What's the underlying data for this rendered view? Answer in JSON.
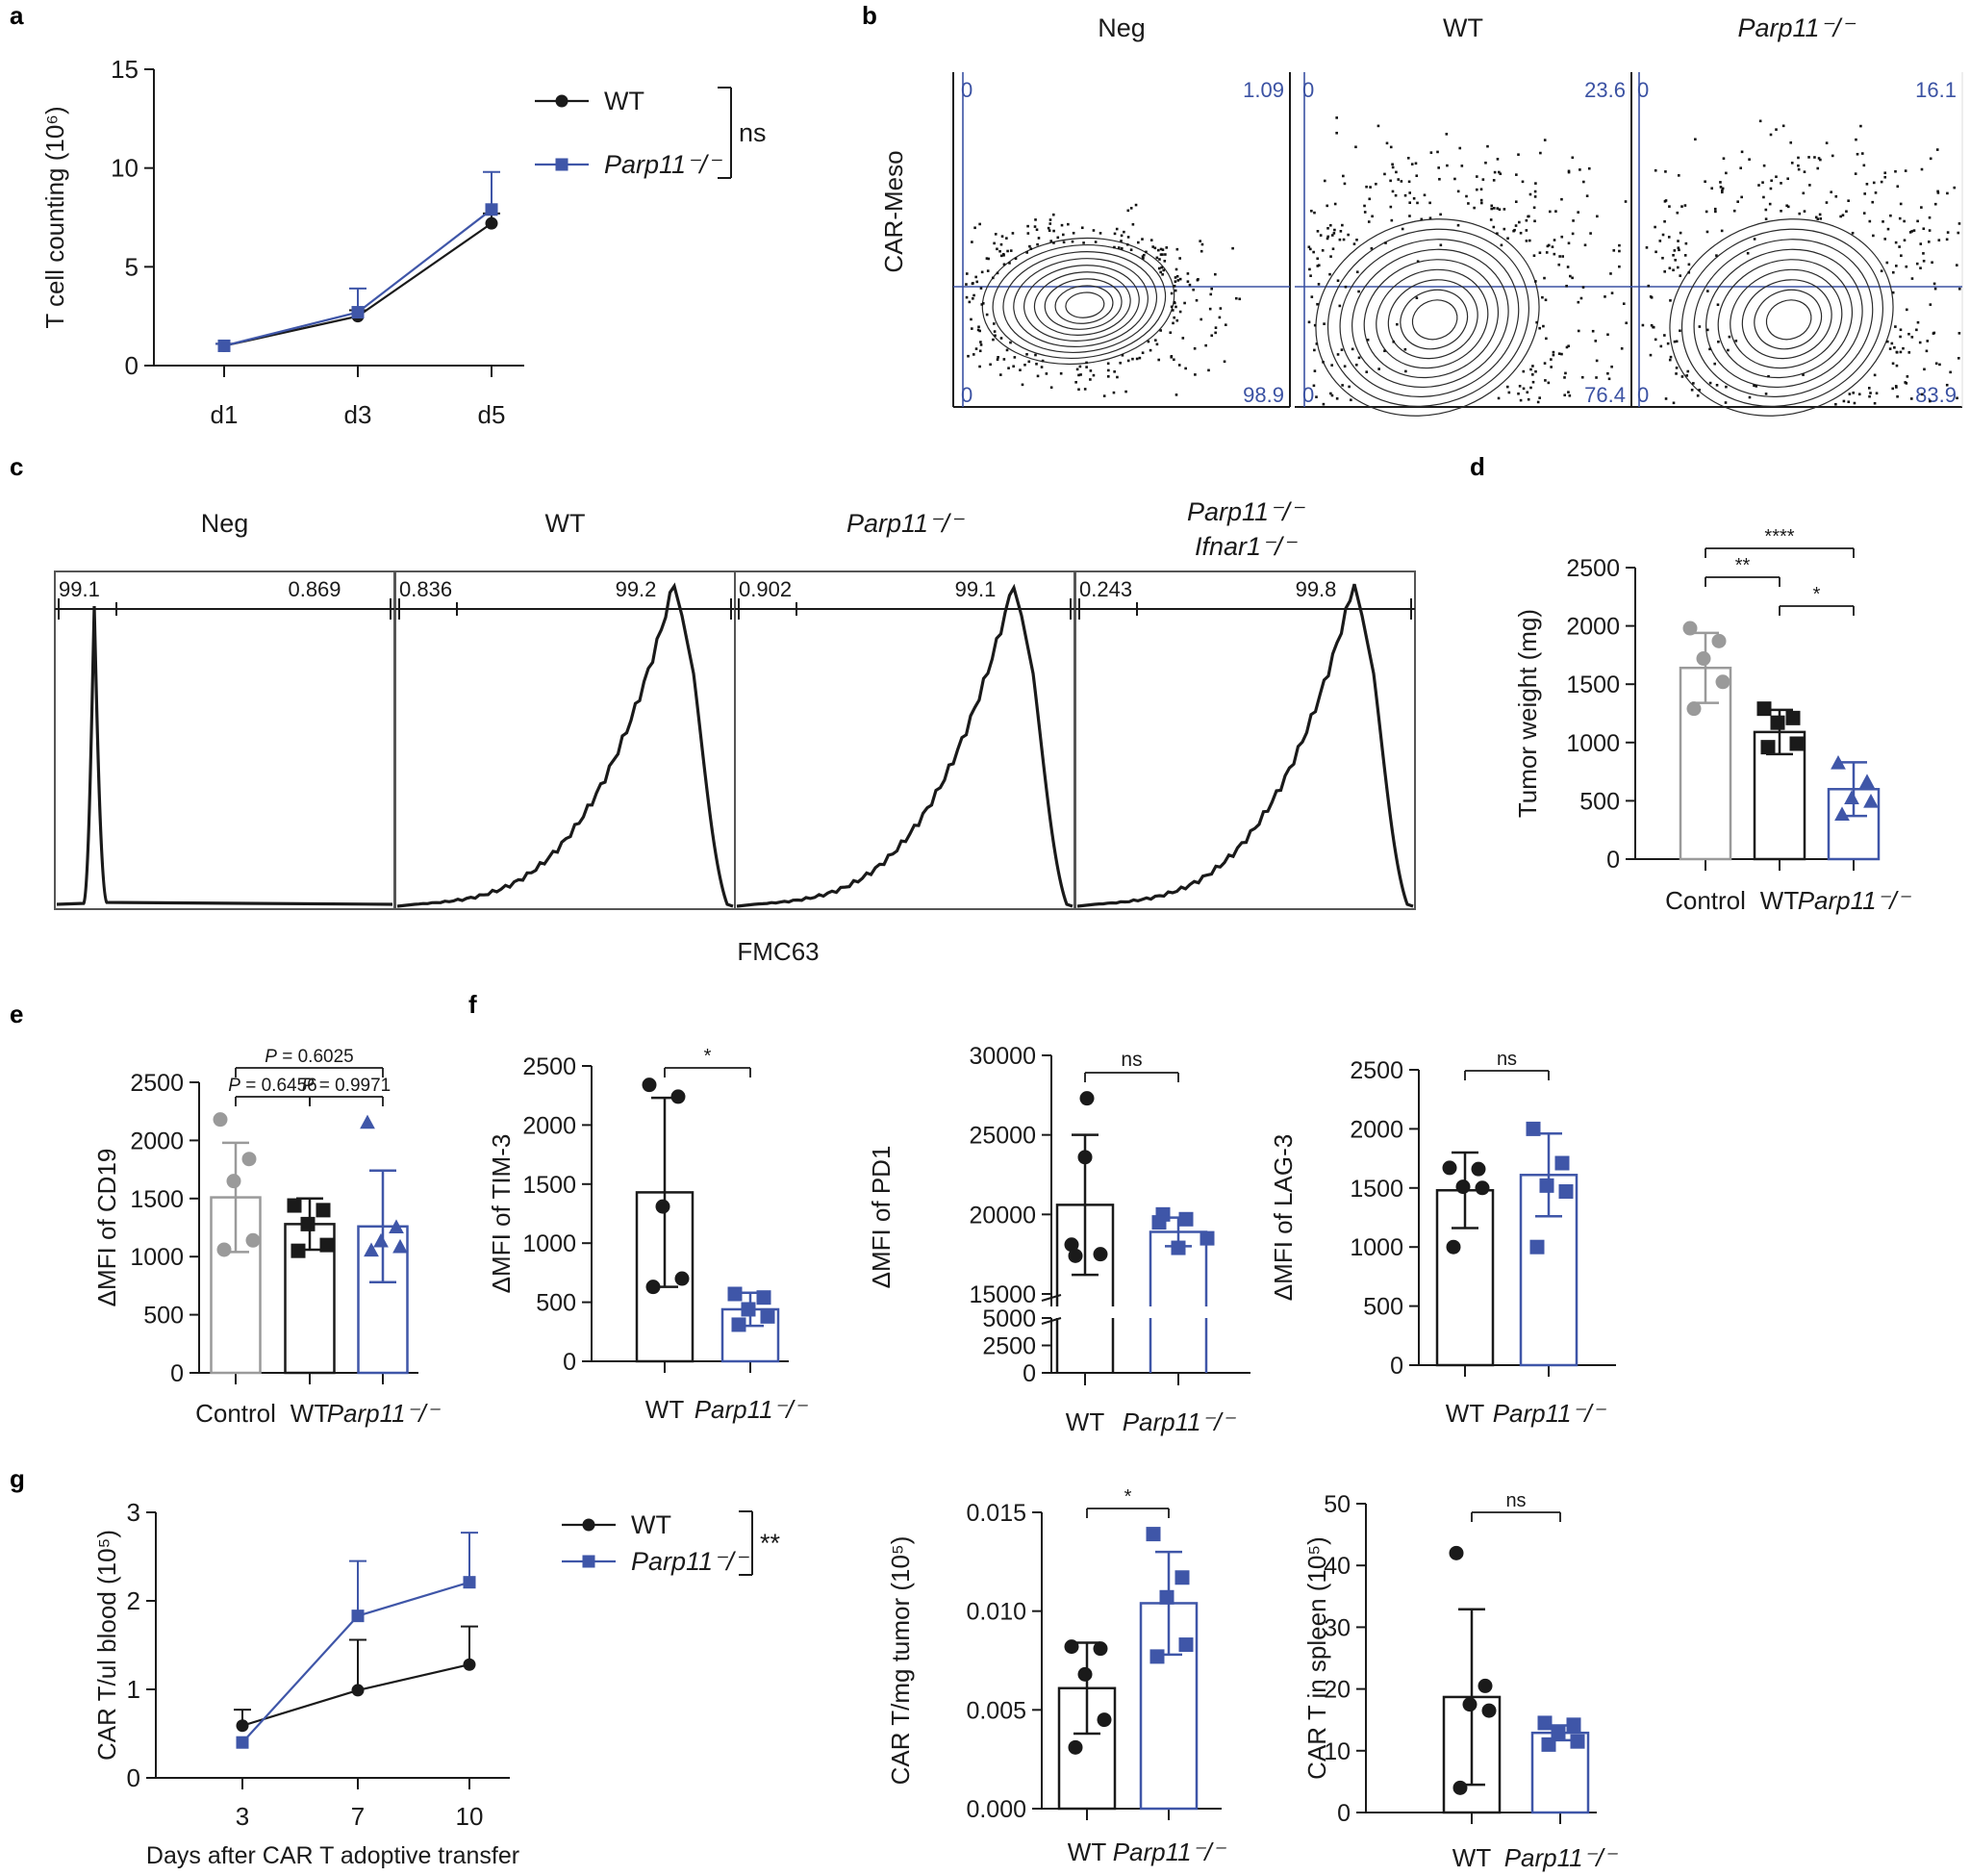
{
  "colors": {
    "black": "#1a1a1a",
    "blue": "#3f56a8",
    "gray": "#9a9a9a",
    "gate": "#3b52a3"
  },
  "panel_letters": {
    "a": "a",
    "b": "b",
    "c": "c",
    "d": "d",
    "e": "e",
    "f": "f",
    "g": "g"
  },
  "chart_data": [
    {
      "id": "a",
      "type": "line",
      "ylabel": "T cell counting (10⁶)",
      "categories": [
        "d1",
        "d3",
        "d5"
      ],
      "ylim": [
        0,
        15
      ],
      "yticks": [
        0,
        5,
        10,
        15
      ],
      "series": [
        {
          "name": "WT",
          "color": "black",
          "marker": "circle",
          "values": [
            1.0,
            2.5,
            7.2
          ],
          "err": [
            0.1,
            0.3,
            0.5
          ]
        },
        {
          "name": "Parp11⁻/⁻",
          "color": "blue",
          "marker": "square",
          "values": [
            1.0,
            2.7,
            7.9
          ],
          "err": [
            0.1,
            1.2,
            1.9
          ]
        }
      ],
      "annotation": "ns"
    },
    {
      "id": "b",
      "type": "scatter",
      "ylabel": "CAR-Meso",
      "plots": [
        {
          "title": "Neg",
          "italic": false,
          "q_ul": "0",
          "q_ur": "1.09",
          "q_ll": "0",
          "q_lr": "98.9"
        },
        {
          "title": "WT",
          "italic": false,
          "q_ul": "0",
          "q_ur": "23.6",
          "q_ll": "0",
          "q_lr": "76.4"
        },
        {
          "title": "Parp11⁻/⁻",
          "italic": true,
          "q_ul": "0",
          "q_ur": "16.1",
          "q_ll": "0",
          "q_lr": "83.9"
        }
      ]
    },
    {
      "id": "c",
      "type": "area",
      "xlabel": "FMC63",
      "plots": [
        {
          "title": "Neg",
          "title2": "",
          "italic": false,
          "left": "99.1",
          "right": "0.869"
        },
        {
          "title": "WT",
          "title2": "",
          "italic": false,
          "left": "0.836",
          "right": "99.2"
        },
        {
          "title": "Parp11⁻/⁻",
          "title2": "",
          "italic": true,
          "left": "0.902",
          "right": "99.1"
        },
        {
          "title": "Parp11⁻/⁻",
          "title2": "Ifnar1⁻/⁻",
          "italic": true,
          "left": "0.243",
          "right": "99.8"
        }
      ]
    },
    {
      "id": "d",
      "type": "bar",
      "ylabel": "Tumor weight (mg)",
      "ylim": [
        0,
        2500
      ],
      "yticks": [
        0,
        500,
        1000,
        1500,
        2000,
        2500
      ],
      "categories": [
        "Control",
        "WT",
        "Parp11⁻/⁻"
      ],
      "bars": [
        {
          "mean": 1640,
          "sd": 300,
          "color": "gray",
          "marker": "circle",
          "points": [
            1980,
            1870,
            1720,
            1520,
            1290
          ]
        },
        {
          "mean": 1090,
          "sd": 190,
          "color": "black",
          "marker": "square",
          "points": [
            1290,
            1210,
            1170,
            990,
            960
          ]
        },
        {
          "mean": 600,
          "sd": 230,
          "color": "blue",
          "marker": "triangle",
          "points": [
            820,
            660,
            520,
            490,
            380
          ]
        }
      ],
      "sig": [
        {
          "from": 0,
          "to": 2,
          "label": "****"
        },
        {
          "from": 0,
          "to": 1,
          "label": "**"
        },
        {
          "from": 1,
          "to": 2,
          "label": "*"
        }
      ]
    },
    {
      "id": "e",
      "type": "bar",
      "ylabel": "ΔMFI of CD19",
      "ylim": [
        0,
        2500
      ],
      "yticks": [
        0,
        500,
        1000,
        1500,
        2000,
        2500
      ],
      "categories": [
        "Control",
        "WT",
        "Parp11⁻/⁻"
      ],
      "bars": [
        {
          "mean": 1510,
          "sd": 470,
          "color": "gray",
          "marker": "circle",
          "points": [
            2180,
            1840,
            1650,
            1140,
            1060
          ]
        },
        {
          "mean": 1280,
          "sd": 220,
          "color": "black",
          "marker": "square",
          "points": [
            1440,
            1400,
            1280,
            1100,
            1050
          ]
        },
        {
          "mean": 1260,
          "sd": 480,
          "color": "blue",
          "marker": "triangle",
          "points": [
            2150,
            1250,
            1130,
            1080,
            1050
          ]
        }
      ],
      "sig": [
        {
          "from": 0,
          "to": 2,
          "label": "P = 0.6025"
        },
        {
          "from": 0,
          "to": 1,
          "label": "P = 0.6456"
        },
        {
          "from": 1,
          "to": 2,
          "label": "P = 0.9971"
        }
      ]
    },
    {
      "id": "f1",
      "type": "bar",
      "ylabel": "ΔMFI of TIM-3",
      "ylim": [
        0,
        2500
      ],
      "yticks": [
        0,
        500,
        1000,
        1500,
        2000,
        2500
      ],
      "categories": [
        "WT",
        "Parp11⁻/⁻"
      ],
      "bars": [
        {
          "mean": 1430,
          "sd": 800,
          "color": "black",
          "marker": "circle",
          "points": [
            2340,
            2240,
            1310,
            700,
            630
          ]
        },
        {
          "mean": 440,
          "sd": 140,
          "color": "blue",
          "marker": "square",
          "points": [
            570,
            540,
            440,
            380,
            310
          ]
        }
      ],
      "sig": [
        {
          "from": 0,
          "to": 1,
          "label": "*"
        }
      ]
    },
    {
      "id": "f2",
      "type": "bar",
      "ylabel": "ΔMFI of PD1",
      "broken": true,
      "yticks_upper": [
        15000,
        20000,
        25000,
        30000
      ],
      "yticks_lower": [
        0,
        2500,
        5000
      ],
      "categories": [
        "WT",
        "Parp11⁻/⁻"
      ],
      "bars": [
        {
          "mean": 20600,
          "sd": 4400,
          "color": "black",
          "marker": "circle",
          "points": [
            27300,
            23600,
            18100,
            17500,
            17400
          ]
        },
        {
          "mean": 18900,
          "sd": 900,
          "color": "blue",
          "marker": "square",
          "points": [
            20000,
            19700,
            19500,
            18500,
            17900
          ]
        }
      ],
      "sig": [
        {
          "from": 0,
          "to": 1,
          "label": "ns"
        }
      ]
    },
    {
      "id": "f3",
      "type": "bar",
      "ylabel": "ΔMFI of LAG-3",
      "ylim": [
        0,
        2500
      ],
      "yticks": [
        0,
        500,
        1000,
        1500,
        2000,
        2500
      ],
      "categories": [
        "WT",
        "Parp11⁻/⁻"
      ],
      "bars": [
        {
          "mean": 1480,
          "sd": 320,
          "color": "black",
          "marker": "circle",
          "points": [
            1670,
            1660,
            1510,
            1500,
            1000
          ]
        },
        {
          "mean": 1610,
          "sd": 350,
          "color": "blue",
          "marker": "square",
          "points": [
            2000,
            1710,
            1520,
            1470,
            1000
          ]
        }
      ],
      "sig": [
        {
          "from": 0,
          "to": 1,
          "label": "ns"
        }
      ]
    },
    {
      "id": "g1",
      "type": "line",
      "xlabel": "Days after CAR T adoptive transfer",
      "ylabel": "CAR T/ul blood (10⁵)",
      "categories": [
        "3",
        "7",
        "10"
      ],
      "ylim": [
        0,
        3
      ],
      "yticks": [
        0,
        1,
        2,
        3
      ],
      "series": [
        {
          "name": "WT",
          "color": "black",
          "marker": "circle",
          "values": [
            0.59,
            0.99,
            1.28
          ],
          "err": [
            0.18,
            0.57,
            0.43
          ]
        },
        {
          "name": "Parp11⁻/⁻",
          "color": "blue",
          "marker": "square",
          "values": [
            0.4,
            1.83,
            2.21
          ],
          "err": [
            0.0,
            0.62,
            0.56
          ]
        }
      ],
      "annotation": "**"
    },
    {
      "id": "g2",
      "type": "bar",
      "ylabel": "CAR T/mg tumor (10⁵)",
      "ylim": [
        0,
        0.015
      ],
      "yticks": [
        0,
        0.005,
        0.01,
        0.015
      ],
      "ytick_labels": [
        "0.000",
        "0.005",
        "0.010",
        "0.015"
      ],
      "categories": [
        "WT",
        "Parp11⁻/⁻"
      ],
      "bars": [
        {
          "mean": 0.0061,
          "sd": 0.0023,
          "color": "black",
          "marker": "circle",
          "points": [
            0.0082,
            0.0081,
            0.0068,
            0.0045,
            0.0031
          ]
        },
        {
          "mean": 0.0104,
          "sd": 0.0026,
          "color": "blue",
          "marker": "square",
          "points": [
            0.0139,
            0.0117,
            0.0107,
            0.0083,
            0.0077
          ]
        }
      ],
      "sig": [
        {
          "from": 0,
          "to": 1,
          "label": "*"
        }
      ]
    },
    {
      "id": "g3",
      "type": "bar",
      "ylabel": "CAR T in spleen (10⁵)",
      "ylim": [
        0,
        50
      ],
      "yticks": [
        0,
        10,
        20,
        30,
        40,
        50
      ],
      "categories": [
        "WT",
        "Parp11⁻/⁻"
      ],
      "bars": [
        {
          "mean": 18.7,
          "sd": 14.2,
          "color": "black",
          "marker": "circle",
          "points": [
            42,
            20.5,
            17.5,
            16.5,
            4
          ]
        },
        {
          "mean": 12.9,
          "sd": 1.2,
          "color": "blue",
          "marker": "square",
          "points": [
            14.5,
            14.2,
            13.0,
            11.5,
            11.0
          ]
        }
      ],
      "sig": [
        {
          "from": 0,
          "to": 1,
          "label": "ns"
        }
      ]
    }
  ]
}
